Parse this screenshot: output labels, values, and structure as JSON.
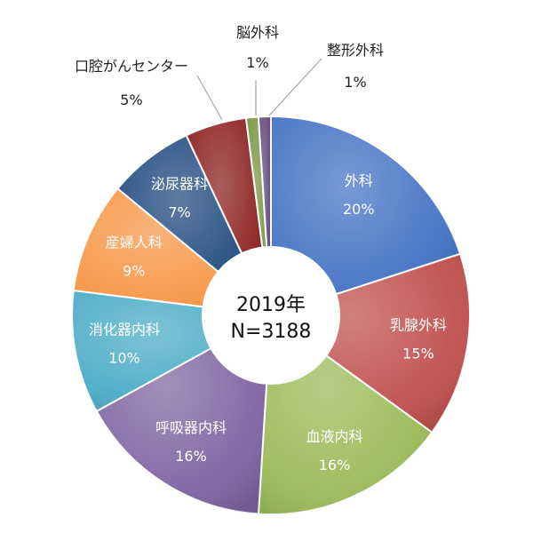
{
  "chart_data": {
    "type": "pie",
    "donut": true,
    "start_angle_deg": 0,
    "direction": "clockwise",
    "slices": [
      {
        "name": "外科",
        "value": 20,
        "label": "20%",
        "color": "#4472C4"
      },
      {
        "name": "乳腺外科",
        "value": 15,
        "label": "15%",
        "color": "#C0504D"
      },
      {
        "name": "血液内科",
        "value": 16,
        "label": "16%",
        "color": "#9BBB59"
      },
      {
        "name": "呼吸器内科",
        "value": 16,
        "label": "16%",
        "color": "#8064A2"
      },
      {
        "name": "消化器内科",
        "value": 10,
        "label": "10%",
        "color": "#4BACC6"
      },
      {
        "name": "産婦人科",
        "value": 9,
        "label": "9%",
        "color": "#F79646"
      },
      {
        "name": "泌尿器科",
        "value": 7,
        "label": "7%",
        "color": "#1F497D"
      },
      {
        "name": "口腔がんセンター",
        "value": 5,
        "label": "5%",
        "color": "#8B1E1E"
      },
      {
        "name": "脳外科",
        "value": 1,
        "label": "1%",
        "color": "#77933C"
      },
      {
        "name": "整形外科",
        "value": 1,
        "label": "1%",
        "color": "#5F497A"
      }
    ],
    "center": {
      "line1": "2019年",
      "line2": "N=3188"
    }
  }
}
